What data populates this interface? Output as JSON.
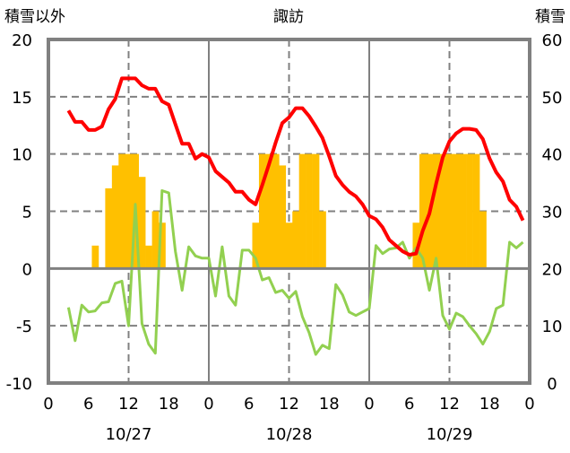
{
  "chart_data": {
    "type": "line",
    "title": "諏訪",
    "ylabel_left": "積雪以外",
    "ylabel_right": "積雪",
    "ylim_left": [
      -10,
      20
    ],
    "ylim_right": [
      0,
      60
    ],
    "yticks_left": [
      "-10",
      "-5",
      "0",
      "5",
      "10",
      "15",
      "20"
    ],
    "yticks_right": [
      "0",
      "10",
      "20",
      "30",
      "40",
      "50",
      "60"
    ],
    "x_unit": "hours since 10/27 00:00",
    "xlim": [
      0,
      72
    ],
    "xticks": [
      "0",
      "6",
      "12",
      "18",
      "0",
      "6",
      "12",
      "18",
      "0",
      "6",
      "12",
      "18",
      "0"
    ],
    "date_labels": [
      "10/27",
      "10/28",
      "10/29"
    ],
    "grid": true,
    "colors": {
      "temperature": "#ff0000",
      "other": "#92d050",
      "snow": "#ffc000",
      "axis": "#808080"
    },
    "series": [
      {
        "name": "red-line",
        "axis": "left",
        "x_start": 3,
        "values": [
          13.8,
          12.8,
          12.8,
          12.1,
          12.1,
          12.4,
          13.9,
          14.8,
          16.6,
          16.6,
          16.6,
          16.0,
          15.7,
          15.7,
          14.6,
          14.3,
          12.6,
          10.9,
          10.9,
          9.6,
          10.0,
          9.7,
          8.5,
          8.0,
          7.5,
          6.7,
          6.7,
          6.0,
          5.6,
          7.3,
          9.1,
          11.0,
          12.7,
          13.2,
          14.0,
          14.0,
          13.3,
          12.4,
          11.4,
          9.8,
          8.1,
          7.3,
          6.7,
          6.3,
          5.6,
          4.6,
          4.3,
          3.6,
          2.5,
          2.0,
          1.5,
          1.2,
          1.3,
          3.3,
          4.8,
          7.4,
          9.7,
          11.1,
          11.8,
          12.2,
          12.2,
          12.1,
          11.3,
          9.6,
          8.4,
          7.6,
          6.0,
          5.4,
          4.2
        ]
      },
      {
        "name": "green-line",
        "axis": "left",
        "x_start": 3,
        "values": [
          -3.4,
          -6.3,
          -3.2,
          -3.8,
          -3.7,
          -3.0,
          -2.9,
          -1.3,
          -1.1,
          -5.0,
          5.6,
          -4.8,
          -6.6,
          -7.4,
          6.8,
          6.6,
          1.5,
          -1.9,
          1.9,
          1.1,
          0.9,
          0.9,
          -2.4,
          1.9,
          -2.4,
          -3.2,
          1.6,
          1.6,
          0.9,
          -1.0,
          -0.8,
          -2.1,
          -1.9,
          -2.6,
          -2.0,
          -4.2,
          -5.6,
          -7.5,
          -6.7,
          -7.0,
          -1.4,
          -2.3,
          -3.8,
          -4.1,
          -3.8,
          -3.5,
          2.0,
          1.3,
          1.7,
          1.8,
          2.3,
          0.9,
          1.8,
          0.9,
          -1.9,
          0.9,
          -4.1,
          -5.3,
          -3.9,
          -4.2,
          -5.0,
          -5.7,
          -6.6,
          -5.5,
          -3.5,
          -3.2,
          2.3,
          1.8,
          2.3
        ]
      },
      {
        "name": "snow-bars",
        "axis": "right",
        "type": "bar",
        "baseline": 20,
        "points": [
          [
            7,
            24
          ],
          [
            9,
            34
          ],
          [
            10,
            38
          ],
          [
            11,
            40
          ],
          [
            12,
            40
          ],
          [
            13,
            40
          ],
          [
            14,
            36
          ],
          [
            15,
            24
          ],
          [
            16,
            30
          ],
          [
            17,
            28
          ],
          [
            31,
            28
          ],
          [
            32,
            40
          ],
          [
            33,
            40
          ],
          [
            34,
            40
          ],
          [
            35,
            38
          ],
          [
            36,
            28
          ],
          [
            37,
            30
          ],
          [
            38,
            40
          ],
          [
            39,
            40
          ],
          [
            40,
            40
          ],
          [
            41,
            30
          ],
          [
            55,
            28
          ],
          [
            56,
            40
          ],
          [
            57,
            40
          ],
          [
            58,
            40
          ],
          [
            59,
            40
          ],
          [
            60,
            40
          ],
          [
            61,
            40
          ],
          [
            62,
            40
          ],
          [
            63,
            40
          ],
          [
            64,
            40
          ],
          [
            65,
            30
          ]
        ]
      }
    ]
  }
}
